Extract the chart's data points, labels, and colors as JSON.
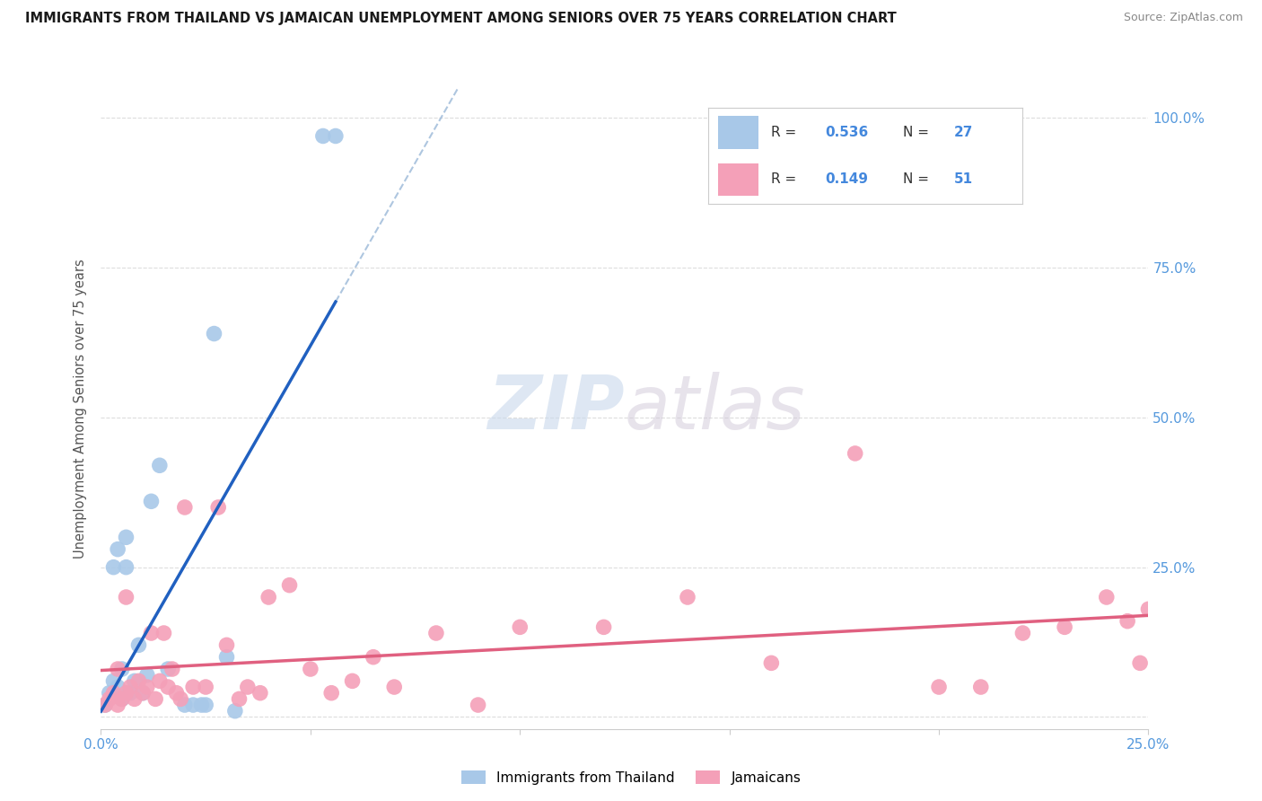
{
  "title": "IMMIGRANTS FROM THAILAND VS JAMAICAN UNEMPLOYMENT AMONG SENIORS OVER 75 YEARS CORRELATION CHART",
  "source": "Source: ZipAtlas.com",
  "ylabel": "Unemployment Among Seniors over 75 years",
  "xlim": [
    0.0,
    0.25
  ],
  "ylim": [
    -0.02,
    1.05
  ],
  "R_thailand": 0.536,
  "N_thailand": 27,
  "R_jamaican": 0.149,
  "N_jamaican": 51,
  "thailand_color": "#a8c8e8",
  "jamaican_color": "#f4a0b8",
  "trend_thailand_color": "#2060c0",
  "trend_jamaican_color": "#e06080",
  "dashed_line_color": "#9ab8d8",
  "watermark_zip": "ZIP",
  "watermark_atlas": "atlas",
  "thailand_x": [
    0.001,
    0.002,
    0.003,
    0.003,
    0.004,
    0.004,
    0.005,
    0.005,
    0.006,
    0.006,
    0.007,
    0.008,
    0.009,
    0.01,
    0.011,
    0.012,
    0.014,
    0.016,
    0.02,
    0.022,
    0.024,
    0.025,
    0.027,
    0.03,
    0.032,
    0.053,
    0.056
  ],
  "thailand_y": [
    0.02,
    0.04,
    0.06,
    0.25,
    0.28,
    0.05,
    0.08,
    0.03,
    0.25,
    0.3,
    0.04,
    0.06,
    0.12,
    0.04,
    0.07,
    0.36,
    0.42,
    0.08,
    0.02,
    0.02,
    0.02,
    0.02,
    0.64,
    0.1,
    0.01,
    0.97,
    0.97
  ],
  "jamaican_x": [
    0.001,
    0.002,
    0.003,
    0.004,
    0.004,
    0.005,
    0.006,
    0.006,
    0.007,
    0.008,
    0.009,
    0.01,
    0.011,
    0.012,
    0.013,
    0.014,
    0.015,
    0.016,
    0.017,
    0.018,
    0.019,
    0.02,
    0.022,
    0.025,
    0.028,
    0.03,
    0.033,
    0.035,
    0.038,
    0.04,
    0.045,
    0.05,
    0.055,
    0.06,
    0.065,
    0.07,
    0.08,
    0.09,
    0.1,
    0.12,
    0.14,
    0.16,
    0.18,
    0.2,
    0.21,
    0.22,
    0.23,
    0.24,
    0.245,
    0.248,
    0.25
  ],
  "jamaican_y": [
    0.02,
    0.03,
    0.04,
    0.02,
    0.08,
    0.03,
    0.04,
    0.2,
    0.05,
    0.03,
    0.06,
    0.04,
    0.05,
    0.14,
    0.03,
    0.06,
    0.14,
    0.05,
    0.08,
    0.04,
    0.03,
    0.35,
    0.05,
    0.05,
    0.35,
    0.12,
    0.03,
    0.05,
    0.04,
    0.2,
    0.22,
    0.08,
    0.04,
    0.06,
    0.1,
    0.05,
    0.14,
    0.02,
    0.15,
    0.15,
    0.2,
    0.09,
    0.44,
    0.05,
    0.05,
    0.14,
    0.15,
    0.2,
    0.16,
    0.09,
    0.18
  ]
}
